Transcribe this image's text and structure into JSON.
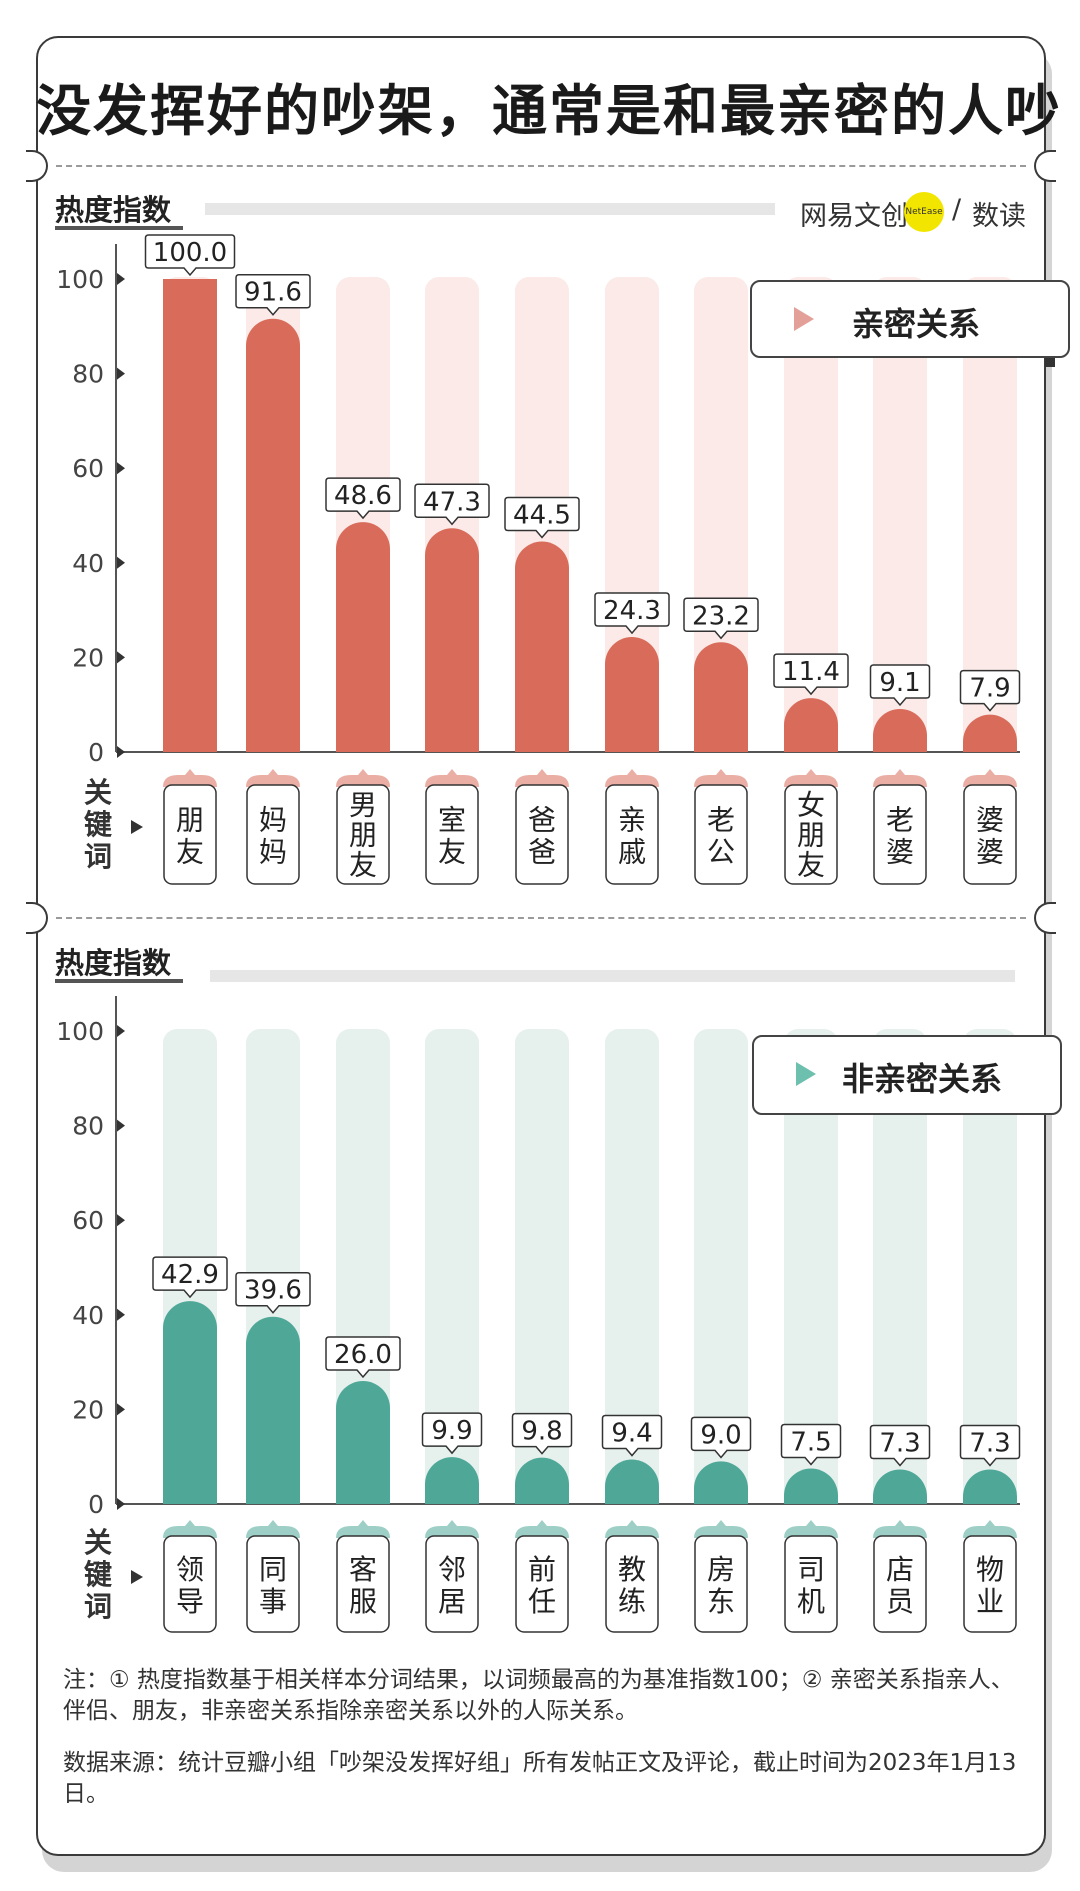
{
  "title": "没发挥好的吵架，通常是和最亲密的人吵",
  "brand": {
    "name": "网易文创",
    "badge": "NetEase",
    "sub": "数读"
  },
  "chart_data": [
    {
      "type": "bar",
      "panel_label": "热度指数",
      "legend": "亲密关系",
      "keyword_label": "关键词",
      "categories": [
        "朋友",
        "妈妈",
        "男朋友",
        "室友",
        "爸爸",
        "亲戚",
        "老公",
        "女朋友",
        "老婆",
        "婆婆"
      ],
      "values": [
        100.0,
        91.6,
        48.6,
        47.3,
        44.5,
        24.3,
        23.2,
        11.4,
        9.1,
        7.9
      ],
      "value_labels": [
        "100.0",
        "91.6",
        "48.6",
        "47.3",
        "44.5",
        "24.3",
        "23.2",
        "11.4",
        "9.1",
        "7.9"
      ],
      "yticks": [
        "0",
        "20",
        "40",
        "60",
        "80",
        "100"
      ],
      "ylim": [
        0,
        100
      ],
      "bar_color": "#d96b5a",
      "track_color": "#fbeae7"
    },
    {
      "type": "bar",
      "panel_label": "热度指数",
      "legend": "非亲密关系",
      "keyword_label": "关键词",
      "categories": [
        "领导",
        "同事",
        "客服",
        "邻居",
        "前任",
        "教练",
        "房东",
        "司机",
        "店员",
        "物业"
      ],
      "values": [
        42.9,
        39.6,
        26.0,
        9.9,
        9.8,
        9.4,
        9.0,
        7.5,
        7.3,
        7.3
      ],
      "value_labels": [
        "42.9",
        "39.6",
        "26.0",
        "9.9",
        "9.8",
        "9.4",
        "9.0",
        "7.5",
        "7.3",
        "7.3"
      ],
      "yticks": [
        "0",
        "20",
        "40",
        "60",
        "80",
        "100"
      ],
      "ylim": [
        0,
        100
      ],
      "bar_color": "#4fa897",
      "track_color": "#e6f1ee"
    }
  ],
  "note": "注：① 热度指数基于相关样本分词结果，以词频最高的为基准指数100；② 亲密关系指亲人、伴侣、朋友，非亲密关系指除亲密关系以外的人际关系。",
  "source": "数据来源：统计豆瓣小组「吵架没发挥好组」所有发帖正文及评论，截止时间为2023年1月13日。"
}
